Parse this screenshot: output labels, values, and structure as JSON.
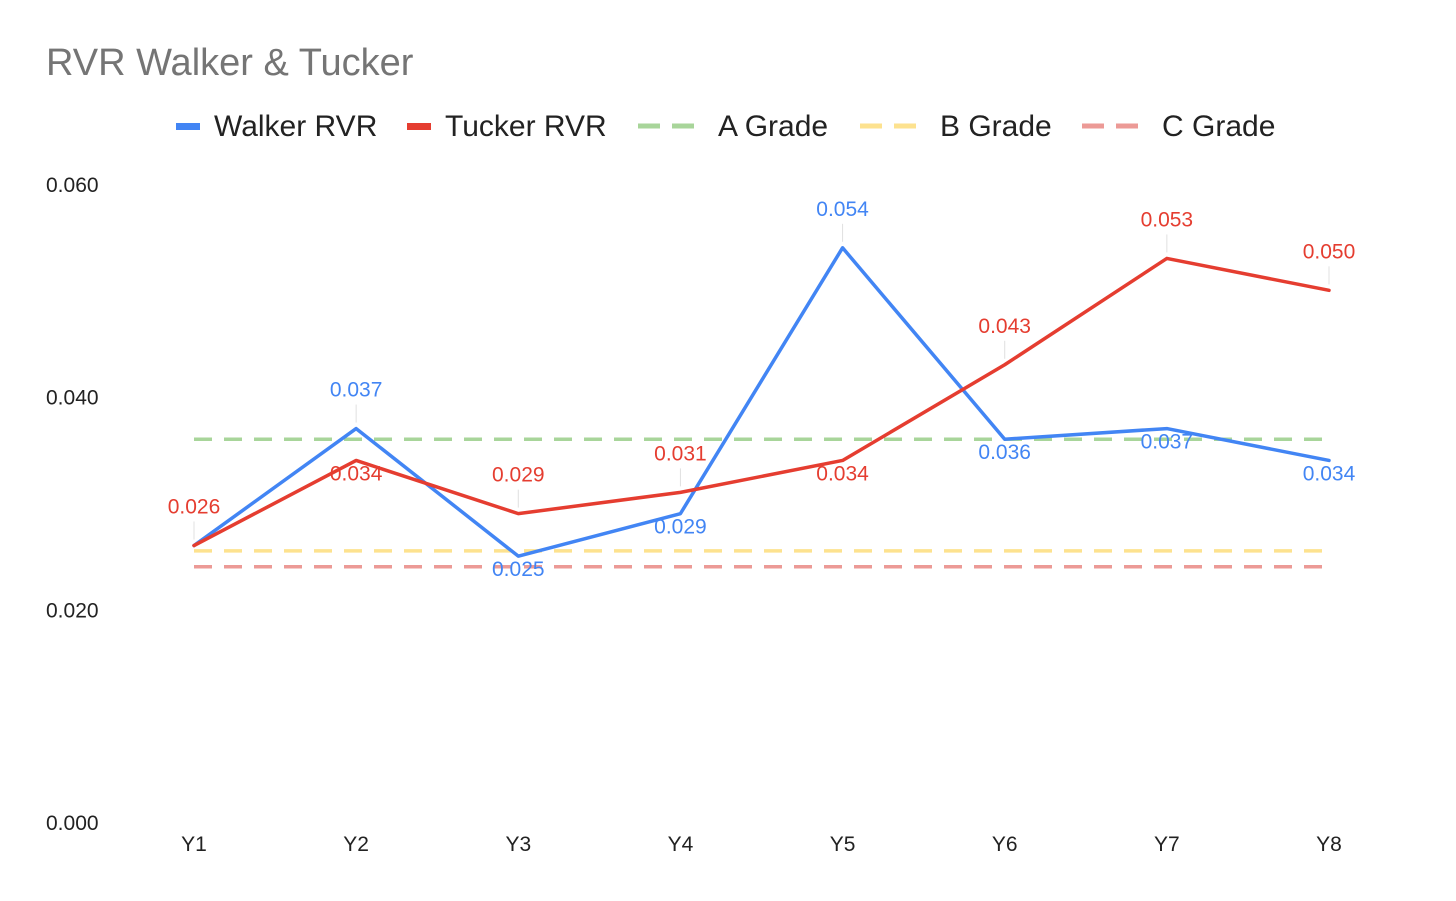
{
  "chart_data": {
    "type": "line",
    "title": "RVR Walker & Tucker",
    "xlabel": "",
    "ylabel": "",
    "categories": [
      "Y1",
      "Y2",
      "Y3",
      "Y4",
      "Y5",
      "Y6",
      "Y7",
      "Y8"
    ],
    "ylim": [
      0,
      0.06
    ],
    "yticks": [
      {
        "value": 0.0,
        "label": "0.000"
      },
      {
        "value": 0.02,
        "label": "0.020"
      },
      {
        "value": 0.04,
        "label": "0.040"
      },
      {
        "value": 0.06,
        "label": "0.060"
      }
    ],
    "grid": false,
    "legend_position": "top",
    "series": [
      {
        "name": "Walker RVR",
        "color": "#4285f4",
        "style": "solid",
        "values": [
          0.026,
          0.037,
          0.025,
          0.029,
          0.054,
          0.036,
          0.037,
          0.034
        ],
        "labels": [
          "",
          "0.037",
          "0.025",
          "0.029",
          "0.054",
          "0.036",
          "0.037",
          "0.034"
        ]
      },
      {
        "name": "Tucker RVR",
        "color": "#e53d30",
        "style": "solid",
        "values": [
          0.026,
          0.034,
          0.029,
          0.031,
          0.034,
          0.043,
          0.053,
          0.05
        ],
        "labels": [
          "0.026",
          "0.034",
          "0.029",
          "0.031",
          "0.034",
          "0.043",
          "0.053",
          "0.050"
        ]
      },
      {
        "name": "A Grade",
        "color": "#a8d59a",
        "style": "dashed",
        "values": [
          0.036,
          0.036,
          0.036,
          0.036,
          0.036,
          0.036,
          0.036,
          0.036
        ]
      },
      {
        "name": "B Grade",
        "color": "#fde28f",
        "style": "dashed",
        "values": [
          0.0255,
          0.0255,
          0.0255,
          0.0255,
          0.0255,
          0.0255,
          0.0255,
          0.0255
        ]
      },
      {
        "name": "C Grade",
        "color": "#ec9a96",
        "style": "dashed",
        "values": [
          0.024,
          0.024,
          0.024,
          0.024,
          0.024,
          0.024,
          0.024,
          0.024
        ]
      }
    ]
  }
}
